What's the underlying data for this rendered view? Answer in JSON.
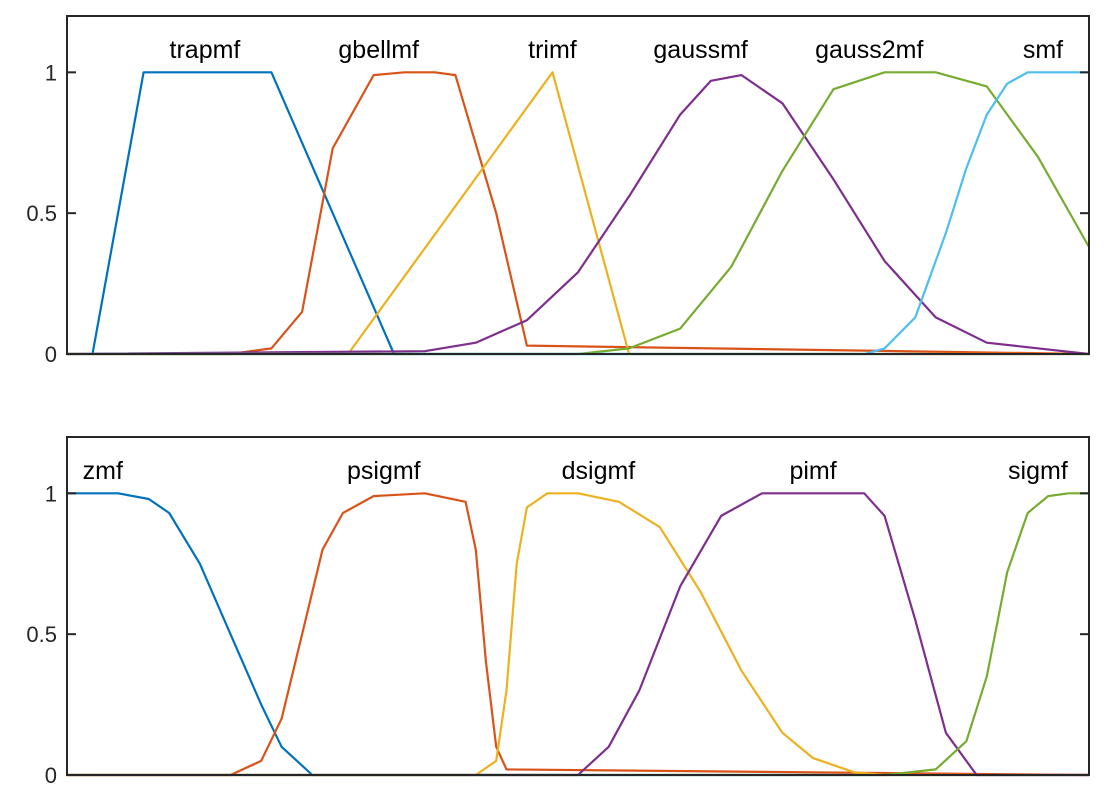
{
  "chart_data": [
    {
      "type": "line",
      "title": "",
      "xlabel": "",
      "ylabel": "",
      "xlim": [
        0,
        10
      ],
      "ylim": [
        0,
        1.2
      ],
      "yticks": [
        0,
        0.5,
        1
      ],
      "ytick_labels": [
        "0",
        "0.5",
        "1"
      ],
      "grid": false,
      "series": [
        {
          "name": "trapmf",
          "color": "#0072BD",
          "x": [
            0.25,
            0.75,
            2.0,
            3.2,
            10
          ],
          "y": [
            0,
            1,
            1,
            0,
            0
          ],
          "label_x": 1.35
        },
        {
          "name": "gbellmf",
          "color": "#D95319",
          "x": [
            0,
            1.6,
            2.0,
            2.3,
            2.6,
            3.0,
            3.3,
            3.6,
            3.8,
            4.2,
            4.5,
            10
          ],
          "y": [
            0,
            0.0,
            0.02,
            0.15,
            0.73,
            0.99,
            1,
            1,
            0.99,
            0.5,
            0.03,
            0
          ],
          "label_x": 3.05
        },
        {
          "name": "trimf",
          "color": "#EDB120",
          "x": [
            0,
            2.75,
            4.75,
            5.5,
            10
          ],
          "y": [
            0,
            0,
            1,
            0,
            0
          ],
          "label_x": 4.75
        },
        {
          "name": "gaussmf",
          "color": "#7E2F8E",
          "x": [
            0,
            3.5,
            4.0,
            4.5,
            5.0,
            5.5,
            6.0,
            6.3,
            6.6,
            7.0,
            7.5,
            8.0,
            8.5,
            9.0,
            10
          ],
          "y": [
            0,
            0.01,
            0.04,
            0.12,
            0.29,
            0.56,
            0.85,
            0.97,
            0.99,
            0.89,
            0.62,
            0.33,
            0.13,
            0.04,
            0
          ],
          "label_x": 6.2
        },
        {
          "name": "gauss2mf",
          "color": "#77AC30",
          "x": [
            0,
            5.0,
            5.5,
            6.0,
            6.5,
            7.0,
            7.5,
            8.0,
            8.5,
            9.0,
            9.5,
            10
          ],
          "y": [
            0,
            0.0,
            0.02,
            0.09,
            0.31,
            0.65,
            0.94,
            1,
            1,
            0.95,
            0.7,
            0.38
          ],
          "label_x": 7.85
        },
        {
          "name": "smf",
          "color": "#4DBEEE",
          "x": [
            0,
            7.8,
            8.0,
            8.3,
            8.6,
            8.8,
            9.0,
            9.2,
            9.4,
            9.7,
            10
          ],
          "y": [
            0,
            0,
            0.02,
            0.13,
            0.43,
            0.66,
            0.85,
            0.96,
            1,
            1,
            1
          ],
          "label_x": 9.55
        }
      ]
    },
    {
      "type": "line",
      "title": "",
      "xlabel": "",
      "ylabel": "",
      "xlim": [
        0,
        10
      ],
      "ylim": [
        0,
        1.2
      ],
      "yticks": [
        0,
        0.5,
        1
      ],
      "ytick_labels": [
        "0",
        "0.5",
        "1"
      ],
      "grid": false,
      "series": [
        {
          "name": "zmf",
          "color": "#0072BD",
          "x": [
            0,
            0.5,
            0.8,
            1.0,
            1.3,
            1.6,
            1.9,
            2.1,
            2.4,
            10
          ],
          "y": [
            1,
            1,
            0.98,
            0.93,
            0.75,
            0.5,
            0.25,
            0.1,
            0,
            0
          ],
          "label_x": 0.35
        },
        {
          "name": "psigmf",
          "color": "#D95319",
          "x": [
            0,
            1.6,
            1.9,
            2.1,
            2.3,
            2.5,
            2.7,
            3.0,
            3.5,
            3.9,
            4.0,
            4.1,
            4.2,
            4.3,
            10
          ],
          "y": [
            0,
            0,
            0.05,
            0.2,
            0.5,
            0.8,
            0.93,
            0.99,
            1,
            0.97,
            0.8,
            0.4,
            0.1,
            0.02,
            0
          ],
          "label_x": 3.1
        },
        {
          "name": "dsigmf",
          "color": "#EDB120",
          "x": [
            0,
            4.0,
            4.2,
            4.3,
            4.4,
            4.5,
            4.7,
            5.0,
            5.4,
            5.8,
            6.2,
            6.6,
            7.0,
            7.3,
            7.7,
            8.0,
            10
          ],
          "y": [
            0,
            0,
            0.05,
            0.3,
            0.75,
            0.95,
            1,
            1,
            0.97,
            0.88,
            0.65,
            0.37,
            0.15,
            0.06,
            0.01,
            0,
            0
          ],
          "label_x": 5.2
        },
        {
          "name": "pimf",
          "color": "#7E2F8E",
          "x": [
            0,
            5.0,
            5.3,
            5.6,
            6.0,
            6.4,
            6.8,
            7.0,
            7.8,
            8.0,
            8.3,
            8.6,
            8.9,
            10
          ],
          "y": [
            0,
            0,
            0.1,
            0.3,
            0.67,
            0.92,
            1,
            1,
            1,
            0.92,
            0.55,
            0.15,
            0,
            0
          ],
          "label_x": 7.3
        },
        {
          "name": "sigmf",
          "color": "#77AC30",
          "x": [
            0,
            8.0,
            8.5,
            8.8,
            9.0,
            9.2,
            9.4,
            9.6,
            9.8,
            10
          ],
          "y": [
            0,
            0,
            0.02,
            0.12,
            0.35,
            0.72,
            0.93,
            0.99,
            1,
            1
          ],
          "label_x": 9.5
        }
      ]
    }
  ]
}
